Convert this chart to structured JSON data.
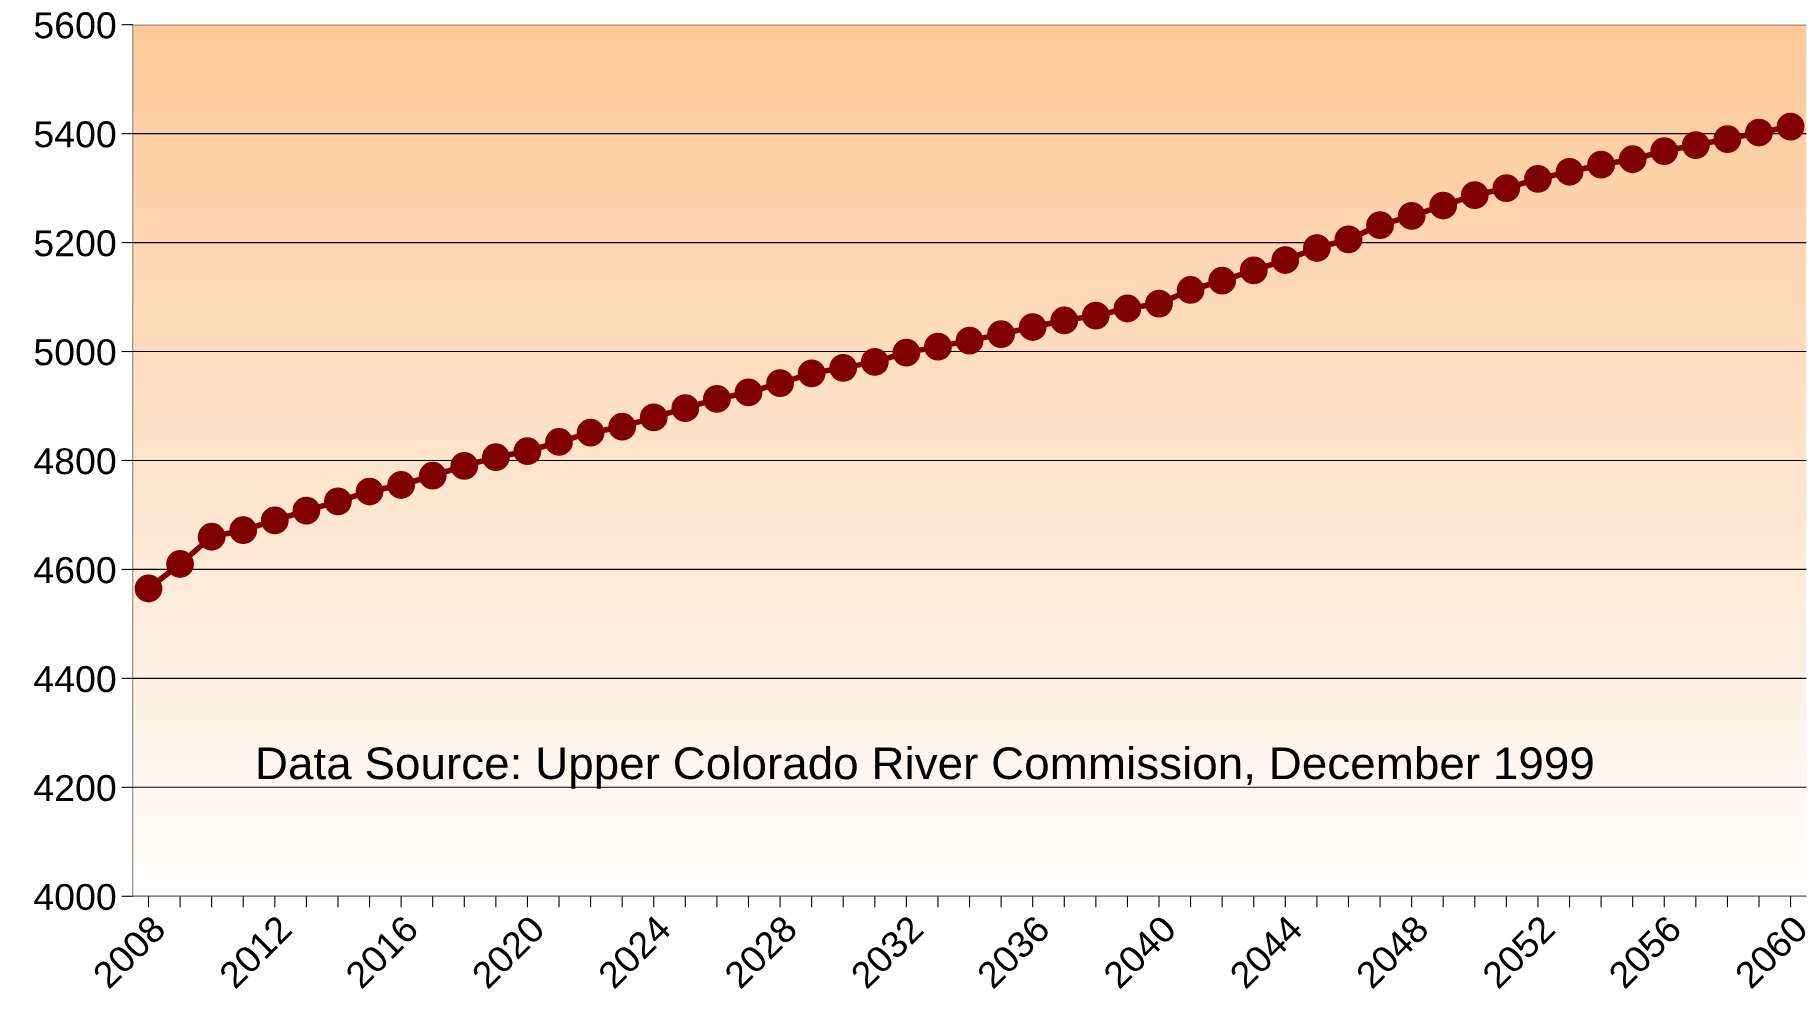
{
  "chart_data": {
    "type": "line",
    "categories": [
      "2008",
      null,
      null,
      null,
      "2012",
      null,
      null,
      null,
      "2016",
      null,
      null,
      null,
      "2020",
      null,
      null,
      null,
      "2024",
      null,
      null,
      null,
      "2028",
      null,
      null,
      null,
      "2032",
      null,
      null,
      null,
      "2036",
      null,
      null,
      null,
      "2040",
      null,
      null,
      null,
      "2044",
      null,
      null,
      null,
      "2048",
      null,
      null,
      null,
      "2052",
      null,
      null,
      null,
      "2056",
      null,
      null,
      null,
      "2060"
    ],
    "series": [
      {
        "color": "#800000",
        "values": [
          4565,
          4610,
          4660,
          4672,
          4690,
          4708,
          4725,
          4743,
          4755,
          4772,
          4790,
          4806,
          4817,
          4834,
          4851,
          4862,
          4879,
          4896,
          4913,
          4925,
          4942,
          4960,
          4970,
          4981,
          4998,
          5009,
          5020,
          5032,
          5045,
          5057,
          5066,
          5079,
          5088,
          5113,
          5130,
          5149,
          5168,
          5190,
          5206,
          5232,
          5249,
          5268,
          5287,
          5300,
          5317,
          5330,
          5343,
          5353,
          5368,
          5379,
          5390,
          5402,
          5413
        ]
      }
    ],
    "ylim": [
      4000,
      5600
    ],
    "yticks": [
      4000,
      4200,
      4400,
      4600,
      4800,
      5000,
      5200,
      5400,
      5600
    ],
    "grid": "y",
    "marker": "circle",
    "line_style": "solid",
    "legend": false,
    "annotations": [
      "Data Source: Upper Colorado River Commission, December 1999"
    ]
  }
}
